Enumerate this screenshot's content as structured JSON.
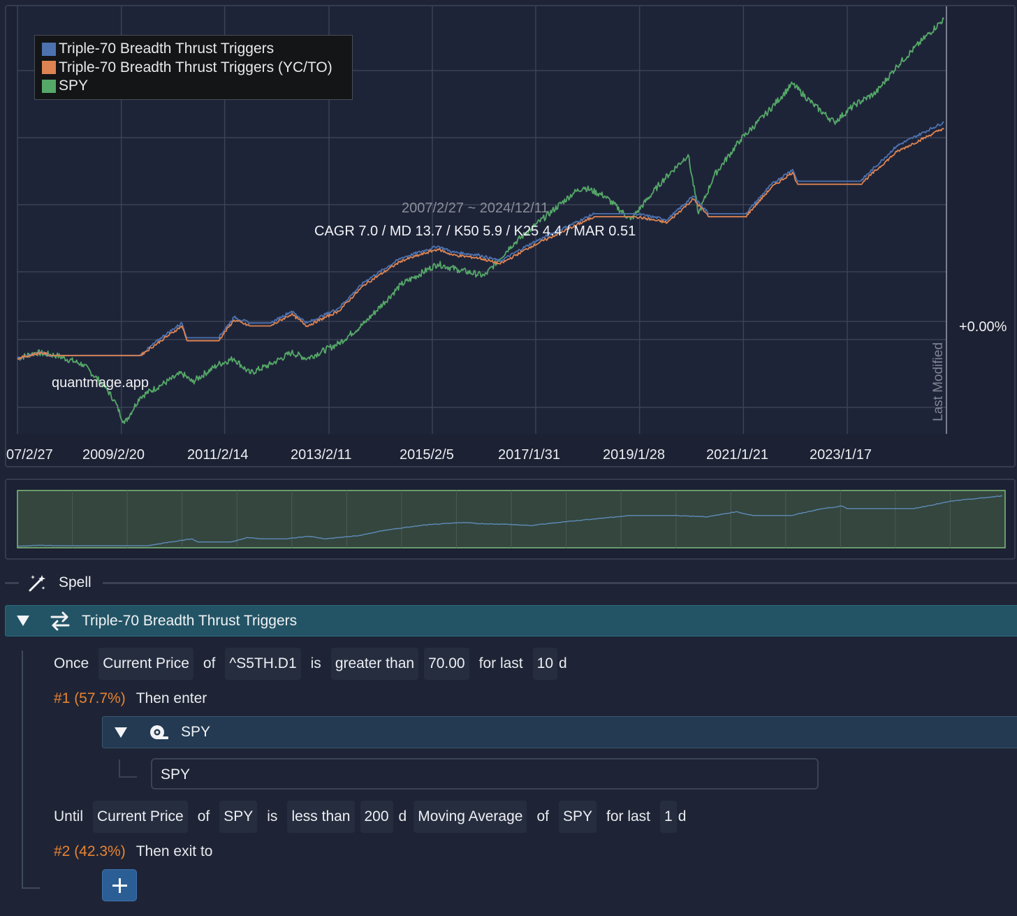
{
  "colors": {
    "series_blue": "#4c72b0",
    "series_orange": "#dd8452",
    "series_green": "#55a868",
    "branch_label": "#e98332",
    "group_header": "#235465",
    "sub_header": "#233a52",
    "add_button": "#2c5e96"
  },
  "chart": {
    "legend": [
      {
        "label": "Triple-70 Breadth Thrust Triggers",
        "color": "#4c72b0"
      },
      {
        "label": "Triple-70 Breadth Thrust Triggers (YC/TO)",
        "color": "#dd8452"
      },
      {
        "label": "SPY",
        "color": "#55a868"
      }
    ],
    "date_range": "2007/2/27 ~ 2024/12/11",
    "stats": "CAGR 7.0 / MD 13.7 / K50 5.9 / K25 4.4 / MAR 0.51",
    "watermark": "quantmage.app",
    "last_modified": "Last Modified",
    "pct_label": "+0.00%",
    "x_ticks": [
      "07/2/27",
      "2009/2/20",
      "2011/2/14",
      "2013/2/11",
      "2015/2/5",
      "2017/1/31",
      "2019/1/28",
      "2021/1/21",
      "2023/1/17"
    ]
  },
  "chart_data": {
    "type": "line",
    "x_range": [
      2007.15,
      2024.95
    ],
    "grid": true,
    "legend_placement": "top-left",
    "series": [
      {
        "name": "Triple-70 Breadth Thrust Triggers",
        "color": "#4c72b0",
        "points": [
          [
            2007.15,
            0
          ],
          [
            2007.6,
            0.02
          ],
          [
            2007.8,
            0.01
          ],
          [
            2009.5,
            0.01
          ],
          [
            2009.9,
            0.07
          ],
          [
            2010.3,
            0.12
          ],
          [
            2010.4,
            0.07
          ],
          [
            2011.0,
            0.07
          ],
          [
            2011.3,
            0.14
          ],
          [
            2011.6,
            0.12
          ],
          [
            2012.0,
            0.12
          ],
          [
            2012.4,
            0.16
          ],
          [
            2012.7,
            0.12
          ],
          [
            2013.3,
            0.17
          ],
          [
            2013.8,
            0.26
          ],
          [
            2014.5,
            0.34
          ],
          [
            2015.2,
            0.38
          ],
          [
            2015.5,
            0.36
          ],
          [
            2016.0,
            0.35
          ],
          [
            2016.4,
            0.33
          ],
          [
            2017.0,
            0.39
          ],
          [
            2017.6,
            0.44
          ],
          [
            2018.2,
            0.49
          ],
          [
            2019.0,
            0.49
          ],
          [
            2019.6,
            0.47
          ],
          [
            2020.1,
            0.55
          ],
          [
            2020.4,
            0.49
          ],
          [
            2021.1,
            0.49
          ],
          [
            2021.6,
            0.59
          ],
          [
            2022.0,
            0.64
          ],
          [
            2022.1,
            0.6
          ],
          [
            2023.3,
            0.6
          ],
          [
            2024.0,
            0.72
          ],
          [
            2024.9,
            0.8
          ]
        ]
      },
      {
        "name": "Triple-70 Breadth Thrust Triggers (YC/TO)",
        "color": "#dd8452",
        "points": [
          [
            2007.15,
            0
          ],
          [
            2007.6,
            0.02
          ],
          [
            2007.8,
            0.01
          ],
          [
            2009.5,
            0.01
          ],
          [
            2009.9,
            0.06
          ],
          [
            2010.3,
            0.11
          ],
          [
            2010.4,
            0.06
          ],
          [
            2011.0,
            0.06
          ],
          [
            2011.3,
            0.13
          ],
          [
            2011.6,
            0.11
          ],
          [
            2012.0,
            0.11
          ],
          [
            2012.4,
            0.15
          ],
          [
            2012.7,
            0.11
          ],
          [
            2013.3,
            0.16
          ],
          [
            2013.8,
            0.25
          ],
          [
            2014.5,
            0.33
          ],
          [
            2015.2,
            0.37
          ],
          [
            2015.5,
            0.35
          ],
          [
            2016.0,
            0.34
          ],
          [
            2016.4,
            0.32
          ],
          [
            2017.0,
            0.38
          ],
          [
            2017.6,
            0.43
          ],
          [
            2018.2,
            0.48
          ],
          [
            2019.0,
            0.48
          ],
          [
            2019.6,
            0.46
          ],
          [
            2020.1,
            0.54
          ],
          [
            2020.4,
            0.48
          ],
          [
            2021.1,
            0.48
          ],
          [
            2021.6,
            0.58
          ],
          [
            2022.0,
            0.63
          ],
          [
            2022.1,
            0.59
          ],
          [
            2023.3,
            0.59
          ],
          [
            2024.0,
            0.7
          ],
          [
            2024.9,
            0.78
          ]
        ]
      },
      {
        "name": "SPY",
        "color": "#55a868",
        "points": [
          [
            2007.15,
            0
          ],
          [
            2007.5,
            0.02
          ],
          [
            2007.9,
            0.01
          ],
          [
            2008.4,
            -0.02
          ],
          [
            2008.8,
            -0.09
          ],
          [
            2009.0,
            -0.14
          ],
          [
            2009.2,
            -0.22
          ],
          [
            2009.5,
            -0.13
          ],
          [
            2009.9,
            -0.09
          ],
          [
            2010.3,
            -0.05
          ],
          [
            2010.5,
            -0.08
          ],
          [
            2011.0,
            -0.02
          ],
          [
            2011.3,
            0.0
          ],
          [
            2011.6,
            -0.05
          ],
          [
            2012.0,
            -0.02
          ],
          [
            2012.4,
            0.02
          ],
          [
            2012.7,
            0.0
          ],
          [
            2013.3,
            0.05
          ],
          [
            2013.8,
            0.12
          ],
          [
            2014.5,
            0.25
          ],
          [
            2015.2,
            0.32
          ],
          [
            2015.6,
            0.3
          ],
          [
            2016.1,
            0.28
          ],
          [
            2016.6,
            0.38
          ],
          [
            2017.0,
            0.44
          ],
          [
            2017.8,
            0.56
          ],
          [
            2018.0,
            0.58
          ],
          [
            2018.4,
            0.55
          ],
          [
            2018.9,
            0.47
          ],
          [
            2019.5,
            0.6
          ],
          [
            2020.0,
            0.69
          ],
          [
            2020.2,
            0.49
          ],
          [
            2020.5,
            0.62
          ],
          [
            2021.0,
            0.74
          ],
          [
            2021.5,
            0.83
          ],
          [
            2022.0,
            0.93
          ],
          [
            2022.4,
            0.86
          ],
          [
            2022.8,
            0.8
          ],
          [
            2023.2,
            0.86
          ],
          [
            2023.6,
            0.9
          ],
          [
            2024.0,
            0.99
          ],
          [
            2024.5,
            1.08
          ],
          [
            2024.9,
            1.15
          ]
        ]
      }
    ]
  },
  "spell": {
    "title": "Spell"
  },
  "group": {
    "title": "Triple-70 Breadth Thrust Triggers",
    "once_rule": {
      "keyword": "Once",
      "metric": "Current Price",
      "of": "of",
      "ticker": "^S5TH.D1",
      "is": "is",
      "comparator": "greater than",
      "threshold": "70.00",
      "for_last": "for last",
      "days": "10",
      "unit": "d"
    },
    "branch1": {
      "label": "#1 (57.7%)",
      "action": "Then enter"
    },
    "sub_group": {
      "title": "SPY",
      "input_value": "SPY"
    },
    "until_rule": {
      "keyword": "Until",
      "metric": "Current Price",
      "of1": "of",
      "ticker1": "SPY",
      "is": "is",
      "comparator": "less than",
      "period": "200",
      "unit1": "d",
      "indicator": "Moving Average",
      "of2": "of",
      "ticker2": "SPY",
      "for_last": "for last",
      "days": "1",
      "unit2": "d"
    },
    "branch2": {
      "label": "#2 (42.3%)",
      "action": "Then exit to"
    }
  }
}
